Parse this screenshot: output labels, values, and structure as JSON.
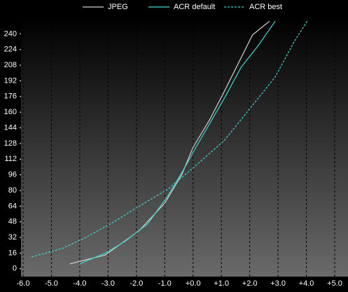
{
  "chart_data": {
    "type": "line",
    "xlim": [
      -6.0,
      5.0
    ],
    "ylim": [
      -8,
      256
    ],
    "xticks": [
      {
        "value": -6,
        "label": "-6.0"
      },
      {
        "value": -5,
        "label": "-5.0"
      },
      {
        "value": -4,
        "label": "-4.0"
      },
      {
        "value": -3,
        "label": "-3.0"
      },
      {
        "value": -2,
        "label": "-2.0"
      },
      {
        "value": -1,
        "label": "-1.0"
      },
      {
        "value": 0,
        "label": "+0.0"
      },
      {
        "value": 1,
        "label": "+1.0"
      },
      {
        "value": 2,
        "label": "+2.0"
      },
      {
        "value": 3,
        "label": "+3.0"
      },
      {
        "value": 4,
        "label": "+4.0"
      },
      {
        "value": 5,
        "label": "+5.0"
      }
    ],
    "yticks": [
      0,
      16,
      32,
      48,
      64,
      80,
      96,
      112,
      128,
      144,
      160,
      176,
      192,
      208,
      224,
      240
    ],
    "grid": "x-dashed",
    "series": [
      {
        "name": "JPEG",
        "color": "#d0d0d0",
        "dash": false,
        "x": [
          -4.35,
          -3.1,
          -1.9,
          -1.0,
          -0.4,
          0,
          0.6,
          1.1,
          1.6,
          2.1,
          2.7
        ],
        "values": [
          5,
          14,
          39,
          67,
          96,
          124,
          153,
          181,
          210,
          239,
          253
        ]
      },
      {
        "name": "ACR default",
        "color": "#40d8d0",
        "dash": false,
        "x": [
          -4.0,
          -3.1,
          -2.4,
          -1.6,
          -0.9,
          -0.3,
          0.1,
          0.6,
          1.1,
          1.7,
          2.3,
          2.9
        ],
        "values": [
          5,
          16,
          28,
          46,
          74,
          103,
          124,
          149,
          174,
          206,
          228,
          253
        ]
      },
      {
        "name": "ACR best",
        "color": "#40d8d0",
        "dash": true,
        "x": [
          -5.7,
          -4.6,
          -3.85,
          -2.85,
          -1.9,
          -0.9,
          0,
          1.1,
          2.1,
          2.9,
          3.55,
          4.05
        ],
        "values": [
          12,
          21,
          31,
          47,
          64,
          81,
          103,
          131,
          167,
          196,
          231,
          254
        ]
      }
    ]
  }
}
